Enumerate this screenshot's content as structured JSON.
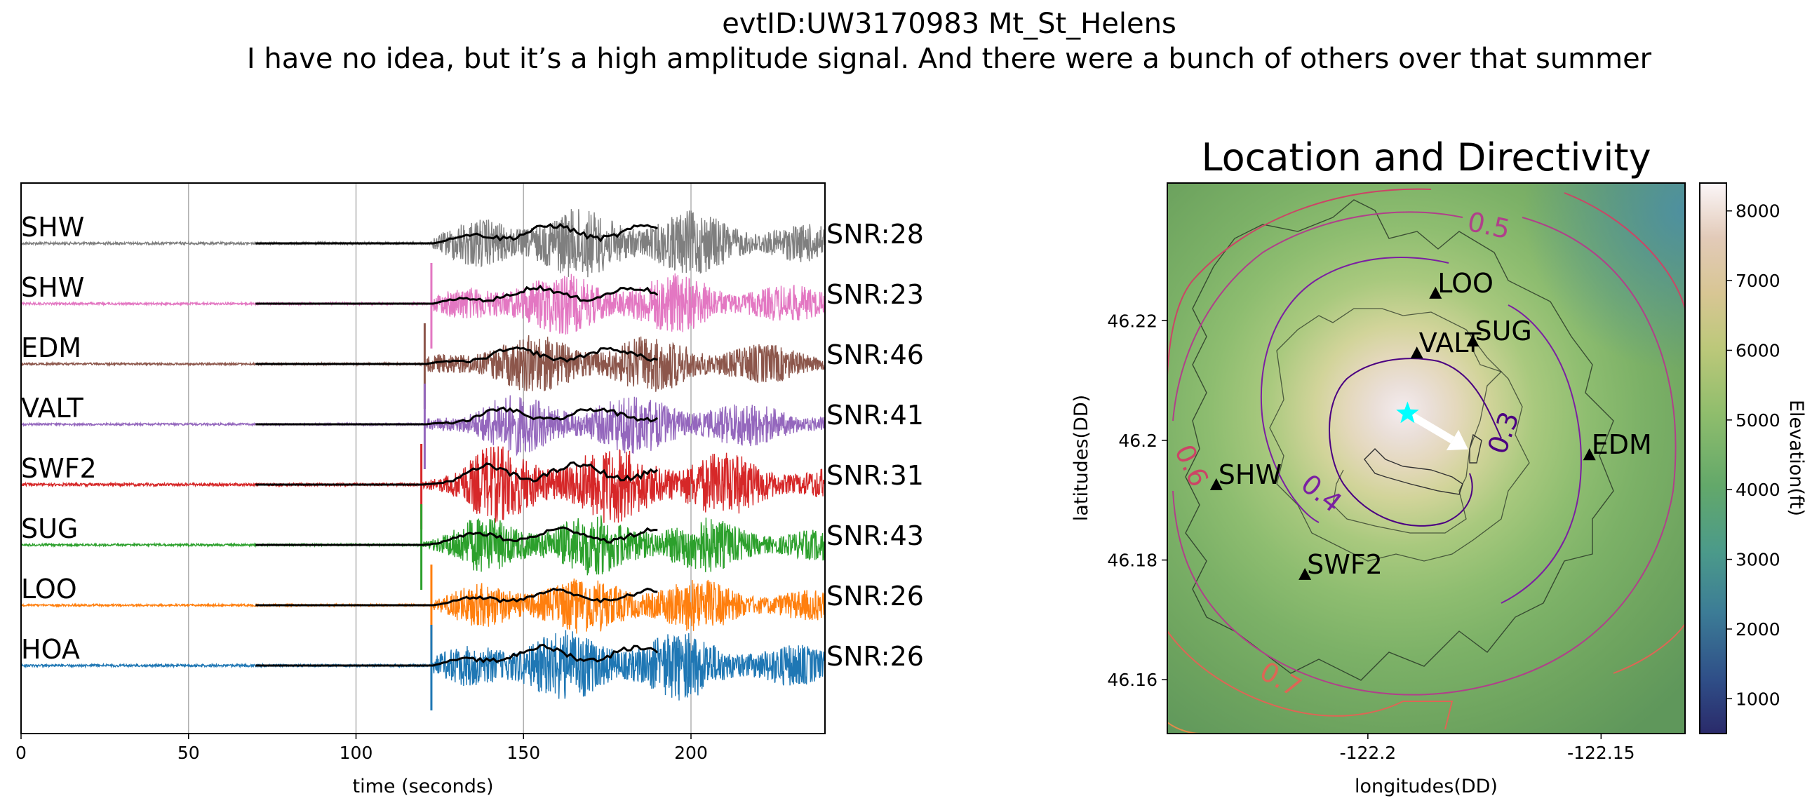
{
  "figure": {
    "title_line1": "evtID:UW3170983 Mt_St_Helens",
    "title_line2": "I have no idea, but it’s a high amplitude signal.  And there were a bunch of others over that summer"
  },
  "chart_data": [
    {
      "type": "line",
      "kind": "seismogram-record-section",
      "xlabel": "time (seconds)",
      "ylabel": "",
      "xlim": [
        0,
        240
      ],
      "xticks": [
        0,
        50,
        100,
        150,
        200
      ],
      "grid": "vertical",
      "overlay_envelope": {
        "color": "#000000",
        "x_start": 70,
        "x_end": 190
      },
      "series": [
        {
          "name": "SHW",
          "snr_label": "SNR:28",
          "color": "#7f7f7f",
          "onset": 123,
          "relative_amplitude": 0.7,
          "spike": false
        },
        {
          "name": "SHW",
          "snr_label": "SNR:23",
          "color": "#e377c2",
          "onset": 123,
          "relative_amplitude": 0.62,
          "spike": true
        },
        {
          "name": "EDM",
          "snr_label": "SNR:46",
          "color": "#8c564b",
          "onset": 121,
          "relative_amplitude": 0.58,
          "spike": true
        },
        {
          "name": "VALT",
          "snr_label": "SNR:41",
          "color": "#9467bd",
          "onset": 121,
          "relative_amplitude": 0.6,
          "spike": true
        },
        {
          "name": "SWF2",
          "snr_label": "SNR:31",
          "color": "#d62728",
          "onset": 120,
          "relative_amplitude": 0.78,
          "spike": true
        },
        {
          "name": "SUG",
          "snr_label": "SNR:43",
          "color": "#2ca02c",
          "onset": 120,
          "relative_amplitude": 0.62,
          "spike": true
        },
        {
          "name": "LOO",
          "snr_label": "SNR:26",
          "color": "#ff7f0e",
          "onset": 123,
          "relative_amplitude": 0.58,
          "spike": true
        },
        {
          "name": "HOA",
          "snr_label": "SNR:26",
          "color": "#1f77b4",
          "onset": 123,
          "relative_amplitude": 0.72,
          "spike": true
        }
      ]
    },
    {
      "type": "heatmap",
      "kind": "map",
      "title": "Location and Directivity",
      "xlabel": "longitudes(DD)",
      "ylabel": "latitudes(DD)",
      "xlim": [
        -122.243,
        -122.132
      ],
      "ylim": [
        46.151,
        46.243
      ],
      "xticks": [
        -122.2,
        -122.15
      ],
      "xtick_labels": [
        "-122.2",
        "-122.15"
      ],
      "yticks": [
        46.16,
        46.18,
        46.2,
        46.22
      ],
      "ytick_labels": [
        "46.16",
        "46.18",
        "46.2",
        "46.22"
      ],
      "colorbar": {
        "label": "Elevation(ft)",
        "ticks": [
          1000,
          2000,
          3000,
          4000,
          5000,
          6000,
          7000,
          8000
        ],
        "range": [
          500,
          8400
        ],
        "colormap": "gist_earth-like"
      },
      "event": {
        "lon": -122.1915,
        "lat": 46.2045,
        "marker": "star",
        "color": "#00ffff"
      },
      "directivity_arrow": {
        "from": [
          -122.1915,
          46.2045
        ],
        "to": [
          -122.1785,
          46.1985
        ],
        "color": "#ffffff"
      },
      "stations": [
        {
          "name": "LOO",
          "lon": -122.1855,
          "lat": 46.2245
        },
        {
          "name": "SUG",
          "lon": -122.1775,
          "lat": 46.2165
        },
        {
          "name": "VALT",
          "lon": -122.1895,
          "lat": 46.2145
        },
        {
          "name": "EDM",
          "lon": -122.1525,
          "lat": 46.1975
        },
        {
          "name": "SHW",
          "lon": -122.2325,
          "lat": 46.1925
        },
        {
          "name": "SWF2",
          "lon": -122.2135,
          "lat": 46.1775
        }
      ],
      "contours": [
        {
          "label": "0.3",
          "color": "#4b0082"
        },
        {
          "label": "0.4",
          "color": "#7b1fa2"
        },
        {
          "label": "0.5",
          "color": "#b0408a"
        },
        {
          "label": "0.6",
          "color": "#cc4466"
        },
        {
          "label": "0.7",
          "color": "#dd6655"
        }
      ]
    }
  ]
}
